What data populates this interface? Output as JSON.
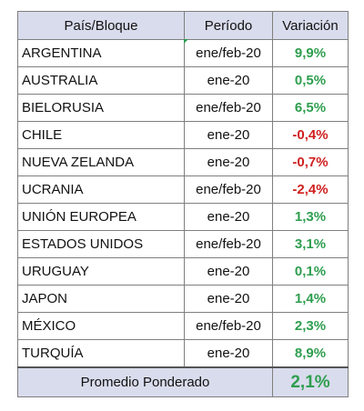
{
  "header": {
    "country": "País/Bloque",
    "period": "Período",
    "variation": "Variación"
  },
  "rows": [
    {
      "country": "ARGENTINA",
      "period": "ene/feb-20",
      "variation": "9,9%",
      "sign": "pos"
    },
    {
      "country": "AUSTRALIA",
      "period": "ene-20",
      "variation": "0,5%",
      "sign": "pos"
    },
    {
      "country": "BIELORUSIA",
      "period": "ene/feb-20",
      "variation": "6,5%",
      "sign": "pos"
    },
    {
      "country": "CHILE",
      "period": "ene-20",
      "variation": "-0,4%",
      "sign": "neg"
    },
    {
      "country": "NUEVA ZELANDA",
      "period": "ene-20",
      "variation": "-0,7%",
      "sign": "neg"
    },
    {
      "country": "UCRANIA",
      "period": "ene/feb-20",
      "variation": "-2,4%",
      "sign": "neg"
    },
    {
      "country": "UNIÓN EUROPEA",
      "period": "ene-20",
      "variation": "1,3%",
      "sign": "pos"
    },
    {
      "country": "ESTADOS UNIDOS",
      "period": "ene/feb-20",
      "variation": "3,1%",
      "sign": "pos"
    },
    {
      "country": "URUGUAY",
      "period": "ene-20",
      "variation": "0,1%",
      "sign": "pos"
    },
    {
      "country": "JAPON",
      "period": "ene-20",
      "variation": "1,4%",
      "sign": "pos"
    },
    {
      "country": "MÉXICO",
      "period": "ene/feb-20",
      "variation": "2,3%",
      "sign": "pos"
    },
    {
      "country": "TURQUÍA",
      "period": "ene-20",
      "variation": "8,9%",
      "sign": "pos"
    }
  ],
  "footer": {
    "label": "Promedio Ponderado",
    "value": "2,1%"
  },
  "colors": {
    "positive": "#2e9e4f",
    "negative": "#d02020",
    "header_bg": "#d9dcec"
  }
}
